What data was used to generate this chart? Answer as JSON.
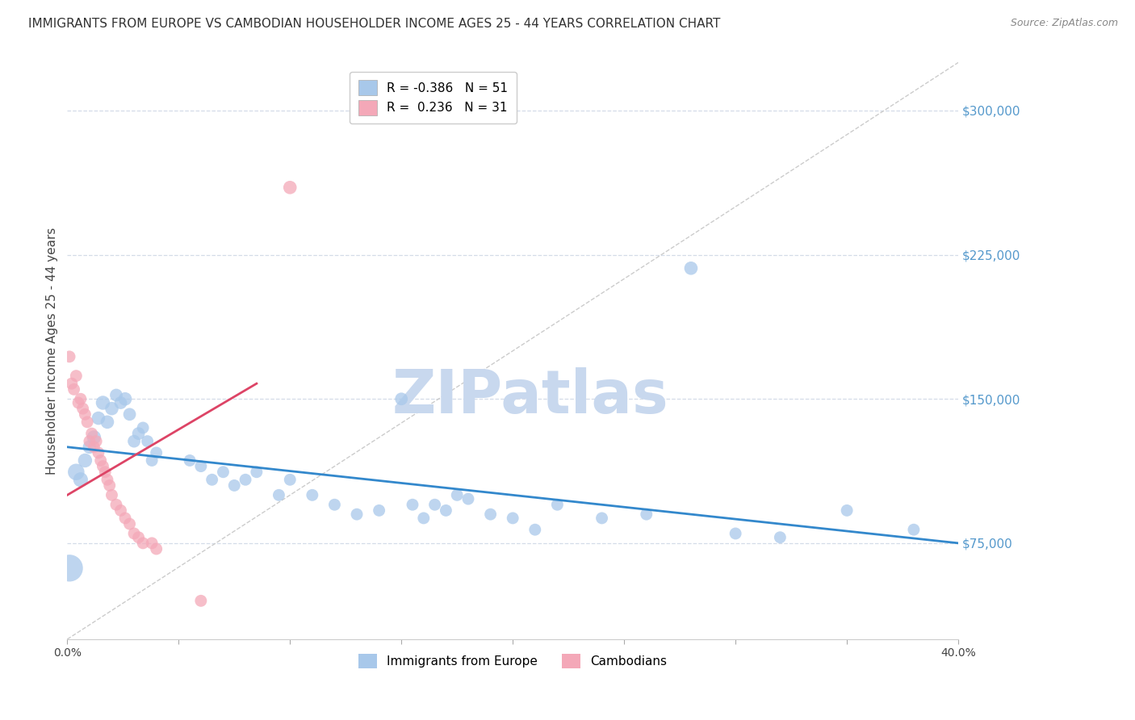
{
  "title": "IMMIGRANTS FROM EUROPE VS CAMBODIAN HOUSEHOLDER INCOME AGES 25 - 44 YEARS CORRELATION CHART",
  "source": "Source: ZipAtlas.com",
  "ylabel": "Householder Income Ages 25 - 44 years",
  "xlim": [
    0.0,
    0.4
  ],
  "ylim": [
    25000,
    325000
  ],
  "yticks": [
    75000,
    150000,
    225000,
    300000
  ],
  "ytick_labels": [
    "$75,000",
    "$150,000",
    "$225,000",
    "$300,000"
  ],
  "xticks": [
    0.0,
    0.05,
    0.1,
    0.15,
    0.2,
    0.25,
    0.3,
    0.35,
    0.4
  ],
  "xtick_labels": [
    "0.0%",
    "",
    "",
    "",
    "",
    "",
    "",
    "",
    "40.0%"
  ],
  "blue_color": "#a8c8ea",
  "pink_color": "#f4a8b8",
  "trend_blue": "#3388cc",
  "trend_pink": "#dd4466",
  "legend_R_blue": "-0.386",
  "legend_N_blue": "51",
  "legend_R_pink": "0.236",
  "legend_N_pink": "31",
  "blue_points": [
    [
      0.001,
      62000,
      38
    ],
    [
      0.004,
      112000,
      18
    ],
    [
      0.006,
      108000,
      15
    ],
    [
      0.008,
      118000,
      14
    ],
    [
      0.01,
      125000,
      13
    ],
    [
      0.012,
      130000,
      14
    ],
    [
      0.014,
      140000,
      13
    ],
    [
      0.016,
      148000,
      14
    ],
    [
      0.018,
      138000,
      13
    ],
    [
      0.02,
      145000,
      13
    ],
    [
      0.022,
      152000,
      12
    ],
    [
      0.024,
      148000,
      12
    ],
    [
      0.026,
      150000,
      13
    ],
    [
      0.028,
      142000,
      12
    ],
    [
      0.03,
      128000,
      12
    ],
    [
      0.032,
      132000,
      12
    ],
    [
      0.034,
      135000,
      11
    ],
    [
      0.036,
      128000,
      11
    ],
    [
      0.038,
      118000,
      11
    ],
    [
      0.04,
      122000,
      11
    ],
    [
      0.055,
      118000,
      11
    ],
    [
      0.06,
      115000,
      11
    ],
    [
      0.065,
      108000,
      11
    ],
    [
      0.07,
      112000,
      11
    ],
    [
      0.075,
      105000,
      11
    ],
    [
      0.08,
      108000,
      11
    ],
    [
      0.085,
      112000,
      11
    ],
    [
      0.095,
      100000,
      11
    ],
    [
      0.1,
      108000,
      11
    ],
    [
      0.11,
      100000,
      11
    ],
    [
      0.12,
      95000,
      11
    ],
    [
      0.13,
      90000,
      11
    ],
    [
      0.14,
      92000,
      11
    ],
    [
      0.15,
      150000,
      12
    ],
    [
      0.155,
      95000,
      11
    ],
    [
      0.16,
      88000,
      11
    ],
    [
      0.165,
      95000,
      11
    ],
    [
      0.17,
      92000,
      11
    ],
    [
      0.175,
      100000,
      11
    ],
    [
      0.18,
      98000,
      11
    ],
    [
      0.19,
      90000,
      11
    ],
    [
      0.2,
      88000,
      11
    ],
    [
      0.21,
      82000,
      11
    ],
    [
      0.22,
      95000,
      11
    ],
    [
      0.24,
      88000,
      11
    ],
    [
      0.26,
      90000,
      11
    ],
    [
      0.28,
      218000,
      13
    ],
    [
      0.3,
      80000,
      11
    ],
    [
      0.32,
      78000,
      11
    ],
    [
      0.35,
      92000,
      11
    ],
    [
      0.38,
      82000,
      11
    ]
  ],
  "pink_points": [
    [
      0.001,
      172000,
      11
    ],
    [
      0.002,
      158000,
      11
    ],
    [
      0.003,
      155000,
      11
    ],
    [
      0.004,
      162000,
      11
    ],
    [
      0.005,
      148000,
      11
    ],
    [
      0.006,
      150000,
      11
    ],
    [
      0.007,
      145000,
      11
    ],
    [
      0.008,
      142000,
      11
    ],
    [
      0.009,
      138000,
      11
    ],
    [
      0.01,
      128000,
      11
    ],
    [
      0.011,
      132000,
      11
    ],
    [
      0.012,
      125000,
      11
    ],
    [
      0.013,
      128000,
      11
    ],
    [
      0.014,
      122000,
      11
    ],
    [
      0.015,
      118000,
      11
    ],
    [
      0.016,
      115000,
      11
    ],
    [
      0.017,
      112000,
      11
    ],
    [
      0.018,
      108000,
      11
    ],
    [
      0.019,
      105000,
      11
    ],
    [
      0.02,
      100000,
      11
    ],
    [
      0.022,
      95000,
      11
    ],
    [
      0.024,
      92000,
      11
    ],
    [
      0.026,
      88000,
      11
    ],
    [
      0.028,
      85000,
      11
    ],
    [
      0.03,
      80000,
      11
    ],
    [
      0.032,
      78000,
      11
    ],
    [
      0.034,
      75000,
      11
    ],
    [
      0.038,
      75000,
      11
    ],
    [
      0.04,
      72000,
      11
    ],
    [
      0.06,
      45000,
      11
    ],
    [
      0.1,
      260000,
      13
    ]
  ],
  "watermark": "ZIPatlas",
  "watermark_color": "#c8d8ee",
  "background_color": "#ffffff",
  "grid_color": "#d4dce8",
  "title_fontsize": 11,
  "axis_label_fontsize": 11,
  "tick_fontsize": 10,
  "right_tick_color": "#5599cc"
}
